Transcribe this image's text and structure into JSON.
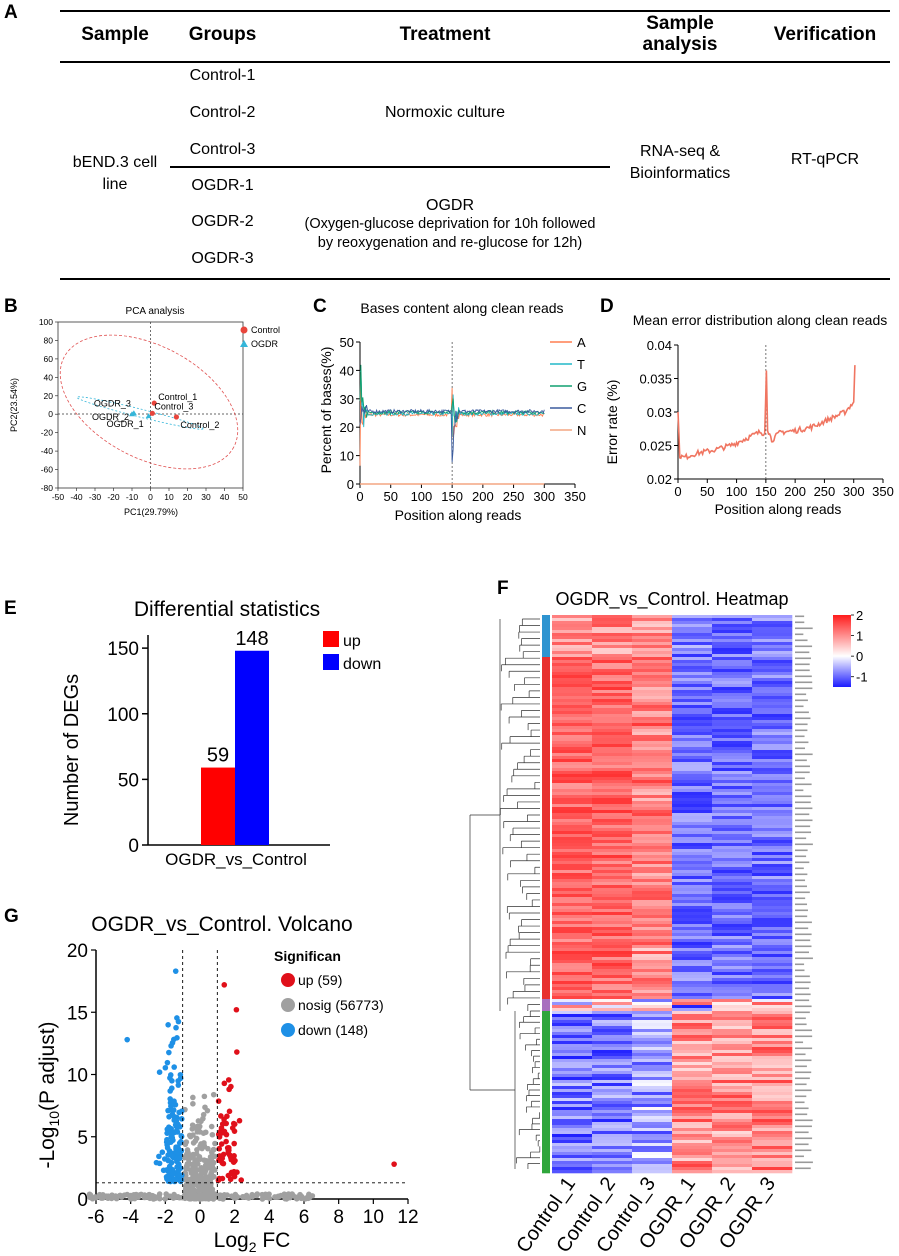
{
  "panel_letters": {
    "a": "A",
    "b": "B",
    "c": "C",
    "d": "D",
    "e": "E",
    "f": "F",
    "g": "G"
  },
  "table": {
    "headers": {
      "sample": "Sample",
      "groups": "Groups",
      "treatment": "Treatment",
      "analysis_1": "Sample",
      "analysis_2": "analysis",
      "verification": "Verification"
    },
    "sample_1": "bEND.3 cell",
    "sample_2": "line",
    "groups": [
      "Control-1",
      "Control-2",
      "Control-3",
      "OGDR-1",
      "OGDR-2",
      "OGDR-3"
    ],
    "treatment_control": "Normoxic culture",
    "treatment_ogdr_title": "OGDR",
    "treatment_ogdr_desc_1": "(Oxygen-glucose deprivation for 10h followed",
    "treatment_ogdr_desc_2": "by reoxygenation and re-glucose for 12h)",
    "analysis_1": "RNA-seq &",
    "analysis_2": "Bioinformatics",
    "verification": "RT-qPCR"
  },
  "colors": {
    "control": "#e8453c",
    "ogdr": "#35b6d9",
    "up": "#ff0000",
    "down": "#0000ff",
    "volcano_up": "#e0101a",
    "volcano_down": "#1e90e6",
    "nosig": "#a0a0a0",
    "err_line": "#f07561"
  },
  "chart_data": [
    {
      "id": "B",
      "type": "scatter",
      "title": "PCA analysis",
      "xlabel": "PC1(29.79%)",
      "ylabel": "PC2(23.54%)",
      "xlim": [
        -50,
        50
      ],
      "ylim": [
        -80,
        100
      ],
      "xticks": [
        "-50",
        "-40",
        "-30",
        "-20",
        "-10",
        "0",
        "10",
        "20",
        "30",
        "40",
        "50"
      ],
      "yticks": [
        "100",
        "80",
        "60",
        "40",
        "20",
        "0",
        "-20",
        "-40",
        "-60",
        "-80"
      ],
      "legend": [
        "Control",
        "OGDR"
      ],
      "points": [
        {
          "name": "Control_1",
          "x": 2,
          "y": 12,
          "group": "Control"
        },
        {
          "name": "Control_2",
          "x": 14,
          "y": -3,
          "group": "Control"
        },
        {
          "name": "Control_3",
          "x": 1,
          "y": 1,
          "group": "Control"
        },
        {
          "name": "OGDR_1",
          "x": -1,
          "y": -2,
          "group": "OGDR"
        },
        {
          "name": "OGDR_2",
          "x": -10,
          "y": 0,
          "group": "OGDR"
        },
        {
          "name": "OGDR_3",
          "x": -9,
          "y": 1,
          "group": "OGDR"
        }
      ]
    },
    {
      "id": "C",
      "type": "line",
      "title": "Bases content along clean reads",
      "xlabel": "Position along reads",
      "ylabel": "Percent of bases(%)",
      "xlim": [
        0,
        350
      ],
      "ylim": [
        0,
        50
      ],
      "xticks": [
        "0",
        "50",
        "100",
        "150",
        "200",
        "250",
        "300",
        "350"
      ],
      "yticks": [
        "0",
        "10",
        "20",
        "30",
        "40",
        "50"
      ],
      "series": [
        "A",
        "T",
        "G",
        "C",
        "N"
      ],
      "baseline": 25,
      "n_value": 0
    },
    {
      "id": "D",
      "type": "line",
      "title": "Mean error distribution along clean reads",
      "xlabel": "Position along reads",
      "ylabel": "Error rate (%)",
      "xlim": [
        0,
        350
      ],
      "ylim": [
        0.02,
        0.04
      ],
      "xticks": [
        "0",
        "50",
        "100",
        "150",
        "200",
        "250",
        "300",
        "350"
      ],
      "yticks": [
        "0.02",
        "0.025",
        "0.03",
        "0.035",
        "0.04"
      ],
      "x": [
        0,
        3,
        10,
        30,
        60,
        90,
        120,
        140,
        148,
        151,
        153,
        160,
        175,
        200,
        230,
        260,
        285,
        295,
        300,
        302
      ],
      "y": [
        0.03,
        0.0235,
        0.0232,
        0.0238,
        0.0243,
        0.025,
        0.0262,
        0.027,
        0.0268,
        0.0362,
        0.0275,
        0.0258,
        0.027,
        0.0272,
        0.0278,
        0.029,
        0.03,
        0.031,
        0.0315,
        0.037
      ]
    },
    {
      "id": "E",
      "type": "bar",
      "title": "Differential statistics",
      "categories": [
        "OGDR_vs_Control"
      ],
      "series": [
        {
          "name": "up",
          "values": [
            59
          ]
        },
        {
          "name": "down",
          "values": [
            148
          ]
        }
      ],
      "ylabel": "Number of DEGs",
      "ylim": [
        0,
        160
      ],
      "yticks": [
        "0",
        "50",
        "100",
        "150"
      ],
      "data_labels": [
        "59",
        "148"
      ]
    },
    {
      "id": "F",
      "type": "heatmap",
      "title": "OGDR_vs_Control. Heatmap",
      "columns": [
        "Control_1",
        "Control_2",
        "Control_3",
        "OGDR_1",
        "OGDR_2",
        "OGDR_3"
      ],
      "scale_ticks": [
        "2",
        "1",
        "0",
        "-1"
      ],
      "scale_range": [
        -1.5,
        2
      ]
    },
    {
      "id": "G",
      "type": "scatter",
      "title": "OGDR_vs_Control. Volcano",
      "xlabel_base": "Log",
      "xlabel_sub": "2",
      "xlabel_rest": " FC",
      "ylabel_a": "-Log",
      "ylabel_sub": "10",
      "ylabel_b": "(P adjust)",
      "xlim": [
        -6,
        12
      ],
      "ylim": [
        0,
        20
      ],
      "xticks": [
        "-6",
        "-4",
        "-2",
        "0",
        "2",
        "4",
        "6",
        "8",
        "10",
        "12"
      ],
      "yticks": [
        "0",
        "5",
        "10",
        "15",
        "20"
      ],
      "legend_title": "Significan",
      "legend": [
        "up (59)",
        "nosig (56773)",
        "down (148)"
      ],
      "fc_threshold": 1,
      "p_threshold": 1.3,
      "outliers": [
        {
          "x": 11.2,
          "y": 2.8,
          "group": "up"
        },
        {
          "x": -4.2,
          "y": 12.8,
          "group": "down"
        },
        {
          "x": 1.4,
          "y": 17.2,
          "group": "up"
        },
        {
          "x": 2.1,
          "y": 15.2,
          "group": "up"
        },
        {
          "x": -1.4,
          "y": 18.3,
          "group": "down"
        }
      ]
    }
  ]
}
